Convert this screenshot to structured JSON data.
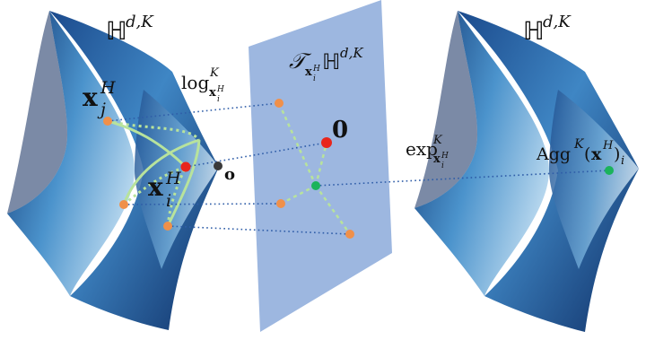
{
  "labels": {
    "left_manifold": {
      "main": "ℍ",
      "sup": "d,K"
    },
    "right_manifold": {
      "main": "ℍ",
      "sup": "d,K"
    },
    "xj": {
      "main": "x",
      "sub": "j",
      "sup": "H"
    },
    "xi": {
      "main": "x",
      "sub": "i",
      "sup": "H"
    },
    "origin_small": "o",
    "log_map": {
      "main": "log",
      "sup": "K",
      "sub_main": "x",
      "sub_sub": "i",
      "sub_sup": "H"
    },
    "tangent_space": {
      "main": "𝒯",
      "sub_main": "x",
      "sub_sub": "i",
      "sub_sup": "H",
      "space": "ℍ",
      "space_sup": "d,K"
    },
    "tangent_origin": "0",
    "exp_map": {
      "main": "exp",
      "sup": "K",
      "sub_main": "x",
      "sub_sub": "i",
      "sub_sup": "H"
    },
    "agg": {
      "main": "Agg",
      "sup": "K",
      "arg_open": "(",
      "arg": "x",
      "arg_sup": "H",
      "arg_close": ")",
      "sub": "i"
    }
  },
  "colors": {
    "manifold_dark": "#123a78",
    "manifold_mid": "#3f86c4",
    "manifold_light": "#a9d0ec",
    "plane": "#9db7e0",
    "point_orange": "#f0904a",
    "point_red": "#e8261c",
    "point_green": "#1bb35c",
    "point_gray": "#3a3a3a",
    "curve_green": "#b8e39c",
    "dotted_blue": "#2f5da8"
  }
}
